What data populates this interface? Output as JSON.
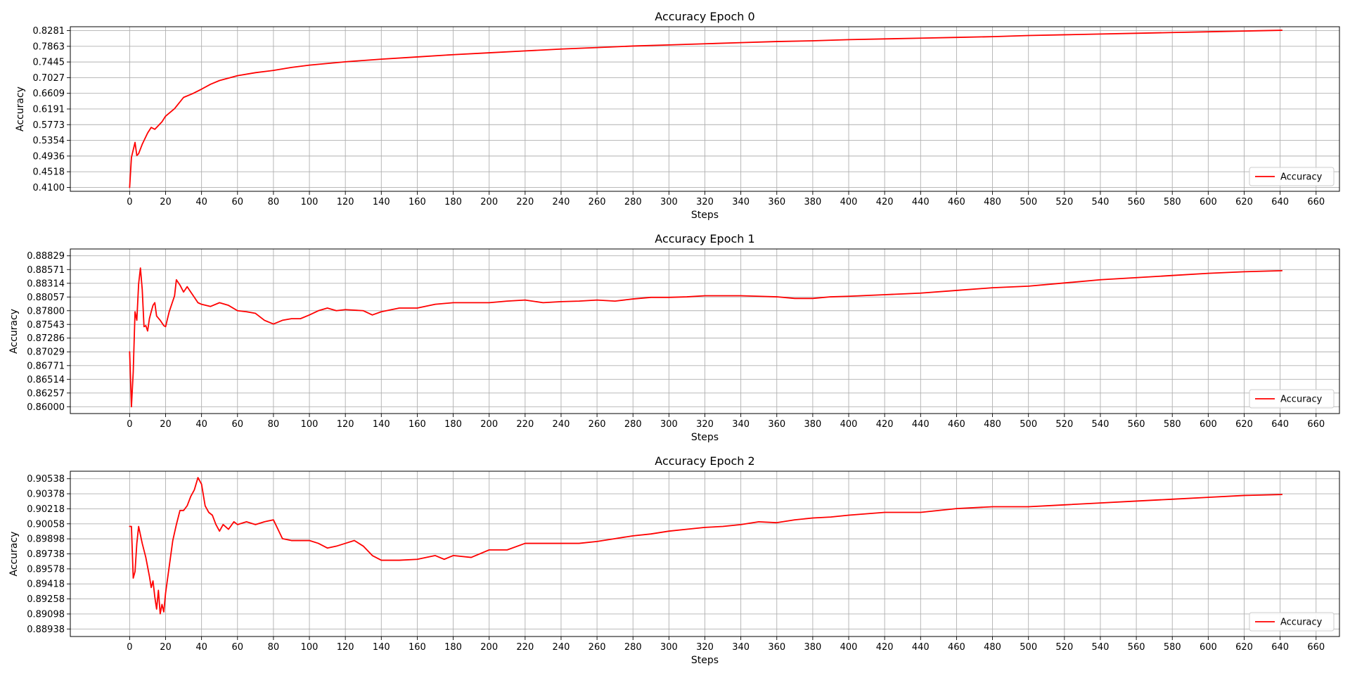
{
  "chart_data": [
    {
      "type": "line",
      "title": "Accuracy Epoch 0",
      "xlabel": "Steps",
      "ylabel": "Accuracy",
      "xlim": [
        -33,
        673
      ],
      "ylim": [
        0.3996,
        0.8385
      ],
      "xticks": [
        0,
        20,
        40,
        60,
        80,
        100,
        120,
        140,
        160,
        180,
        200,
        220,
        240,
        260,
        280,
        300,
        320,
        340,
        360,
        380,
        400,
        420,
        440,
        460,
        480,
        500,
        520,
        540,
        560,
        580,
        600,
        620,
        640,
        660
      ],
      "yticks": [
        "0.4100",
        "0.4518",
        "0.4936",
        "0.5354",
        "0.5773",
        "0.6191",
        "0.6609",
        "0.7027",
        "0.7445",
        "0.7863",
        "0.8281"
      ],
      "grid": true,
      "legend_position": "lower-right",
      "series": [
        {
          "name": "Accuracy",
          "color": "#ff0000",
          "points": [
            [
              0,
              0.41
            ],
            [
              1,
              0.49
            ],
            [
              3,
              0.53
            ],
            [
              4,
              0.495
            ],
            [
              5,
              0.5
            ],
            [
              7,
              0.525
            ],
            [
              10,
              0.555
            ],
            [
              12,
              0.57
            ],
            [
              14,
              0.565
            ],
            [
              16,
              0.575
            ],
            [
              18,
              0.585
            ],
            [
              20,
              0.6
            ],
            [
              25,
              0.62
            ],
            [
              30,
              0.65
            ],
            [
              35,
              0.66
            ],
            [
              40,
              0.672
            ],
            [
              45,
              0.685
            ],
            [
              50,
              0.695
            ],
            [
              60,
              0.708
            ],
            [
              70,
              0.716
            ],
            [
              80,
              0.722
            ],
            [
              90,
              0.73
            ],
            [
              100,
              0.736
            ],
            [
              120,
              0.745
            ],
            [
              140,
              0.752
            ],
            [
              160,
              0.758
            ],
            [
              180,
              0.764
            ],
            [
              200,
              0.769
            ],
            [
              220,
              0.774
            ],
            [
              240,
              0.779
            ],
            [
              260,
              0.783
            ],
            [
              280,
              0.787
            ],
            [
              300,
              0.79
            ],
            [
              320,
              0.793
            ],
            [
              340,
              0.796
            ],
            [
              360,
              0.799
            ],
            [
              380,
              0.801
            ],
            [
              400,
              0.804
            ],
            [
              420,
              0.806
            ],
            [
              440,
              0.808
            ],
            [
              460,
              0.81
            ],
            [
              480,
              0.812
            ],
            [
              500,
              0.815
            ],
            [
              520,
              0.817
            ],
            [
              540,
              0.819
            ],
            [
              560,
              0.821
            ],
            [
              580,
              0.823
            ],
            [
              600,
              0.825
            ],
            [
              620,
              0.827
            ],
            [
              641,
              0.829
            ]
          ]
        }
      ]
    },
    {
      "type": "line",
      "title": "Accuracy Epoch 1",
      "xlabel": "Steps",
      "ylabel": "Accuracy",
      "xlim": [
        -33,
        673
      ],
      "ylim": [
        0.85872,
        0.88957
      ],
      "xticks": [
        0,
        20,
        40,
        60,
        80,
        100,
        120,
        140,
        160,
        180,
        200,
        220,
        240,
        260,
        280,
        300,
        320,
        340,
        360,
        380,
        400,
        420,
        440,
        460,
        480,
        500,
        520,
        540,
        560,
        580,
        600,
        620,
        640,
        660
      ],
      "yticks": [
        "0.86000",
        "0.86257",
        "0.86514",
        "0.86771",
        "0.87029",
        "0.87286",
        "0.87543",
        "0.87800",
        "0.88057",
        "0.88314",
        "0.88571",
        "0.88829"
      ],
      "grid": true,
      "legend_position": "lower-right",
      "series": [
        {
          "name": "Accuracy",
          "color": "#ff0000",
          "points": [
            [
              0,
              0.8703
            ],
            [
              1,
              0.86
            ],
            [
              2,
              0.8665
            ],
            [
              3,
              0.8778
            ],
            [
              4,
              0.8762
            ],
            [
              5,
              0.883
            ],
            [
              6,
              0.886
            ],
            [
              7,
              0.882
            ],
            [
              8,
              0.875
            ],
            [
              9,
              0.8752
            ],
            [
              10,
              0.8742
            ],
            [
              11,
              0.8765
            ],
            [
              12,
              0.8778
            ],
            [
              13,
              0.879
            ],
            [
              14,
              0.8795
            ],
            [
              15,
              0.877
            ],
            [
              17,
              0.8762
            ],
            [
              19,
              0.8752
            ],
            [
              20,
              0.875
            ],
            [
              22,
              0.8778
            ],
            [
              25,
              0.8808
            ],
            [
              26,
              0.8838
            ],
            [
              28,
              0.8828
            ],
            [
              30,
              0.8815
            ],
            [
              32,
              0.8825
            ],
            [
              34,
              0.8815
            ],
            [
              36,
              0.8805
            ],
            [
              38,
              0.8795
            ],
            [
              40,
              0.8792
            ],
            [
              45,
              0.8788
            ],
            [
              50,
              0.8795
            ],
            [
              55,
              0.879
            ],
            [
              60,
              0.878
            ],
            [
              65,
              0.8778
            ],
            [
              70,
              0.8775
            ],
            [
              75,
              0.8762
            ],
            [
              80,
              0.8755
            ],
            [
              85,
              0.8762
            ],
            [
              90,
              0.8765
            ],
            [
              95,
              0.8765
            ],
            [
              100,
              0.8772
            ],
            [
              105,
              0.878
            ],
            [
              110,
              0.8785
            ],
            [
              115,
              0.878
            ],
            [
              120,
              0.8782
            ],
            [
              130,
              0.878
            ],
            [
              135,
              0.8772
            ],
            [
              140,
              0.8778
            ],
            [
              150,
              0.8785
            ],
            [
              160,
              0.8785
            ],
            [
              170,
              0.8792
            ],
            [
              180,
              0.8795
            ],
            [
              190,
              0.8795
            ],
            [
              200,
              0.8795
            ],
            [
              210,
              0.8798
            ],
            [
              220,
              0.88
            ],
            [
              230,
              0.8795
            ],
            [
              240,
              0.8797
            ],
            [
              250,
              0.8798
            ],
            [
              260,
              0.88
            ],
            [
              270,
              0.8798
            ],
            [
              280,
              0.8802
            ],
            [
              290,
              0.8805
            ],
            [
              300,
              0.8805
            ],
            [
              310,
              0.8806
            ],
            [
              320,
              0.8808
            ],
            [
              330,
              0.8808
            ],
            [
              340,
              0.8808
            ],
            [
              350,
              0.8807
            ],
            [
              360,
              0.8806
            ],
            [
              370,
              0.8803
            ],
            [
              380,
              0.8803
            ],
            [
              390,
              0.8806
            ],
            [
              400,
              0.8807
            ],
            [
              420,
              0.881
            ],
            [
              440,
              0.8813
            ],
            [
              460,
              0.8818
            ],
            [
              480,
              0.8823
            ],
            [
              500,
              0.8826
            ],
            [
              520,
              0.8832
            ],
            [
              540,
              0.8838
            ],
            [
              560,
              0.8842
            ],
            [
              580,
              0.8846
            ],
            [
              600,
              0.885
            ],
            [
              620,
              0.8853
            ],
            [
              641,
              0.8855
            ]
          ]
        }
      ]
    },
    {
      "type": "line",
      "title": "Accuracy Epoch 2",
      "xlabel": "Steps",
      "ylabel": "Accuracy",
      "xlim": [
        -33,
        673
      ],
      "ylim": [
        0.88858,
        0.90618
      ],
      "xticks": [
        0,
        20,
        40,
        60,
        80,
        100,
        120,
        140,
        160,
        180,
        200,
        220,
        240,
        260,
        280,
        300,
        320,
        340,
        360,
        380,
        400,
        420,
        440,
        460,
        480,
        500,
        520,
        540,
        560,
        580,
        600,
        620,
        640,
        660
      ],
      "yticks": [
        "0.88938",
        "0.89098",
        "0.89258",
        "0.89418",
        "0.89578",
        "0.89738",
        "0.89898",
        "0.90058",
        "0.90218",
        "0.90378",
        "0.90538"
      ],
      "grid": true,
      "legend_position": "lower-right",
      "series": [
        {
          "name": "Accuracy",
          "color": "#ff0000",
          "points": [
            [
              0,
              0.9003
            ],
            [
              1,
              0.9003
            ],
            [
              2,
              0.8948
            ],
            [
              3,
              0.8955
            ],
            [
              4,
              0.8985
            ],
            [
              5,
              0.9003
            ],
            [
              7,
              0.8985
            ],
            [
              9,
              0.897
            ],
            [
              11,
              0.895
            ],
            [
              12,
              0.8938
            ],
            [
              13,
              0.8945
            ],
            [
              14,
              0.8928
            ],
            [
              15,
              0.8915
            ],
            [
              16,
              0.8935
            ],
            [
              17,
              0.891
            ],
            [
              18,
              0.892
            ],
            [
              19,
              0.8912
            ],
            [
              20,
              0.8932
            ],
            [
              22,
              0.896
            ],
            [
              24,
              0.8988
            ],
            [
              26,
              0.9005
            ],
            [
              28,
              0.902
            ],
            [
              30,
              0.902
            ],
            [
              32,
              0.9025
            ],
            [
              34,
              0.9035
            ],
            [
              36,
              0.9042
            ],
            [
              38,
              0.9055
            ],
            [
              40,
              0.9048
            ],
            [
              42,
              0.9025
            ],
            [
              44,
              0.9018
            ],
            [
              46,
              0.9015
            ],
            [
              48,
              0.9005
            ],
            [
              50,
              0.8998
            ],
            [
              52,
              0.9005
            ],
            [
              55,
              0.9
            ],
            [
              58,
              0.9008
            ],
            [
              60,
              0.9005
            ],
            [
              65,
              0.9008
            ],
            [
              70,
              0.9005
            ],
            [
              75,
              0.9008
            ],
            [
              80,
              0.901
            ],
            [
              85,
              0.899
            ],
            [
              90,
              0.8988
            ],
            [
              100,
              0.8988
            ],
            [
              105,
              0.8985
            ],
            [
              110,
              0.898
            ],
            [
              115,
              0.8982
            ],
            [
              120,
              0.8985
            ],
            [
              125,
              0.8988
            ],
            [
              130,
              0.8982
            ],
            [
              135,
              0.8972
            ],
            [
              140,
              0.8967
            ],
            [
              150,
              0.8967
            ],
            [
              160,
              0.8968
            ],
            [
              170,
              0.8972
            ],
            [
              175,
              0.8968
            ],
            [
              180,
              0.8972
            ],
            [
              190,
              0.897
            ],
            [
              200,
              0.8978
            ],
            [
              210,
              0.8978
            ],
            [
              220,
              0.8985
            ],
            [
              230,
              0.8985
            ],
            [
              240,
              0.8985
            ],
            [
              250,
              0.8985
            ],
            [
              260,
              0.8987
            ],
            [
              270,
              0.899
            ],
            [
              280,
              0.8993
            ],
            [
              290,
              0.8995
            ],
            [
              300,
              0.8998
            ],
            [
              310,
              0.9
            ],
            [
              320,
              0.9002
            ],
            [
              330,
              0.9003
            ],
            [
              340,
              0.9005
            ],
            [
              350,
              0.9008
            ],
            [
              360,
              0.9007
            ],
            [
              370,
              0.901
            ],
            [
              380,
              0.9012
            ],
            [
              390,
              0.9013
            ],
            [
              400,
              0.9015
            ],
            [
              420,
              0.9018
            ],
            [
              440,
              0.9018
            ],
            [
              460,
              0.9022
            ],
            [
              480,
              0.9024
            ],
            [
              500,
              0.9024
            ],
            [
              520,
              0.9026
            ],
            [
              540,
              0.9028
            ],
            [
              560,
              0.903
            ],
            [
              580,
              0.9032
            ],
            [
              600,
              0.9034
            ],
            [
              620,
              0.9036
            ],
            [
              641,
              0.9037
            ]
          ]
        }
      ]
    }
  ]
}
